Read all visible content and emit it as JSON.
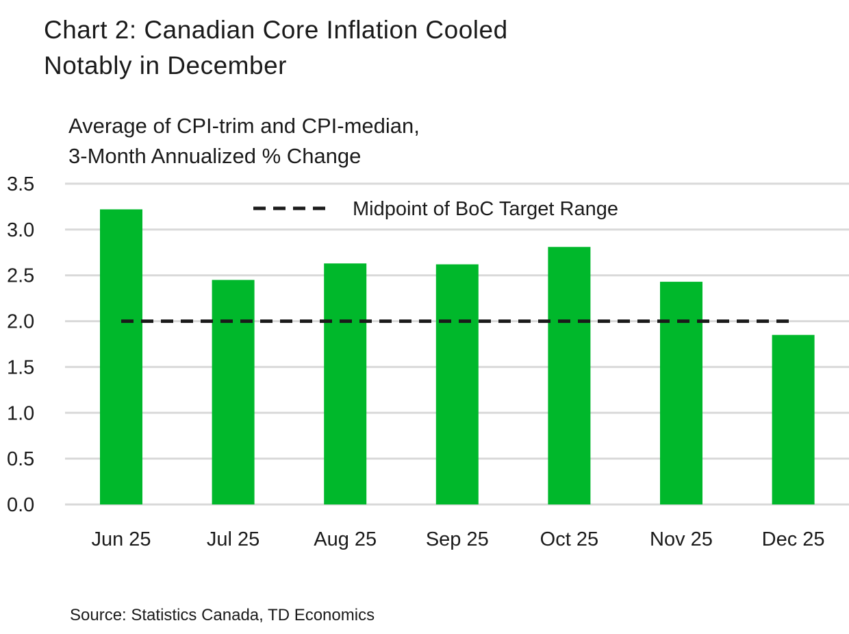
{
  "title_line1": "Chart 2: Canadian Core Inflation Cooled",
  "title_line2": "Notably in December",
  "subtitle_line1": "Average of CPI-trim and CPI-median,",
  "subtitle_line2": "3-Month Annualized % Change",
  "source": "Source: Statistics Canada, TD Economics",
  "chart_data": {
    "type": "bar",
    "title": "Chart 2: Canadian Core Inflation Cooled Notably in December",
    "ylabel": "Average of CPI-trim and CPI-median, 3-Month Annualized % Change",
    "categories": [
      "Jun 25",
      "Jul 25",
      "Aug 25",
      "Sep 25",
      "Oct 25",
      "Nov 25",
      "Dec 25"
    ],
    "values": [
      3.22,
      2.45,
      2.63,
      2.62,
      2.81,
      2.43,
      1.85
    ],
    "ylim": [
      0,
      3.5
    ],
    "yticks": [
      "0.0",
      "0.5",
      "1.0",
      "1.5",
      "2.0",
      "2.5",
      "3.0",
      "3.5"
    ],
    "bar_color": "#00b82b",
    "grid": true,
    "reference_line": {
      "name": "Midpoint of BoC Target Range",
      "value": 2.0,
      "style": "dashed",
      "color": "#1a1a1a"
    },
    "legend_position": "top-center"
  }
}
